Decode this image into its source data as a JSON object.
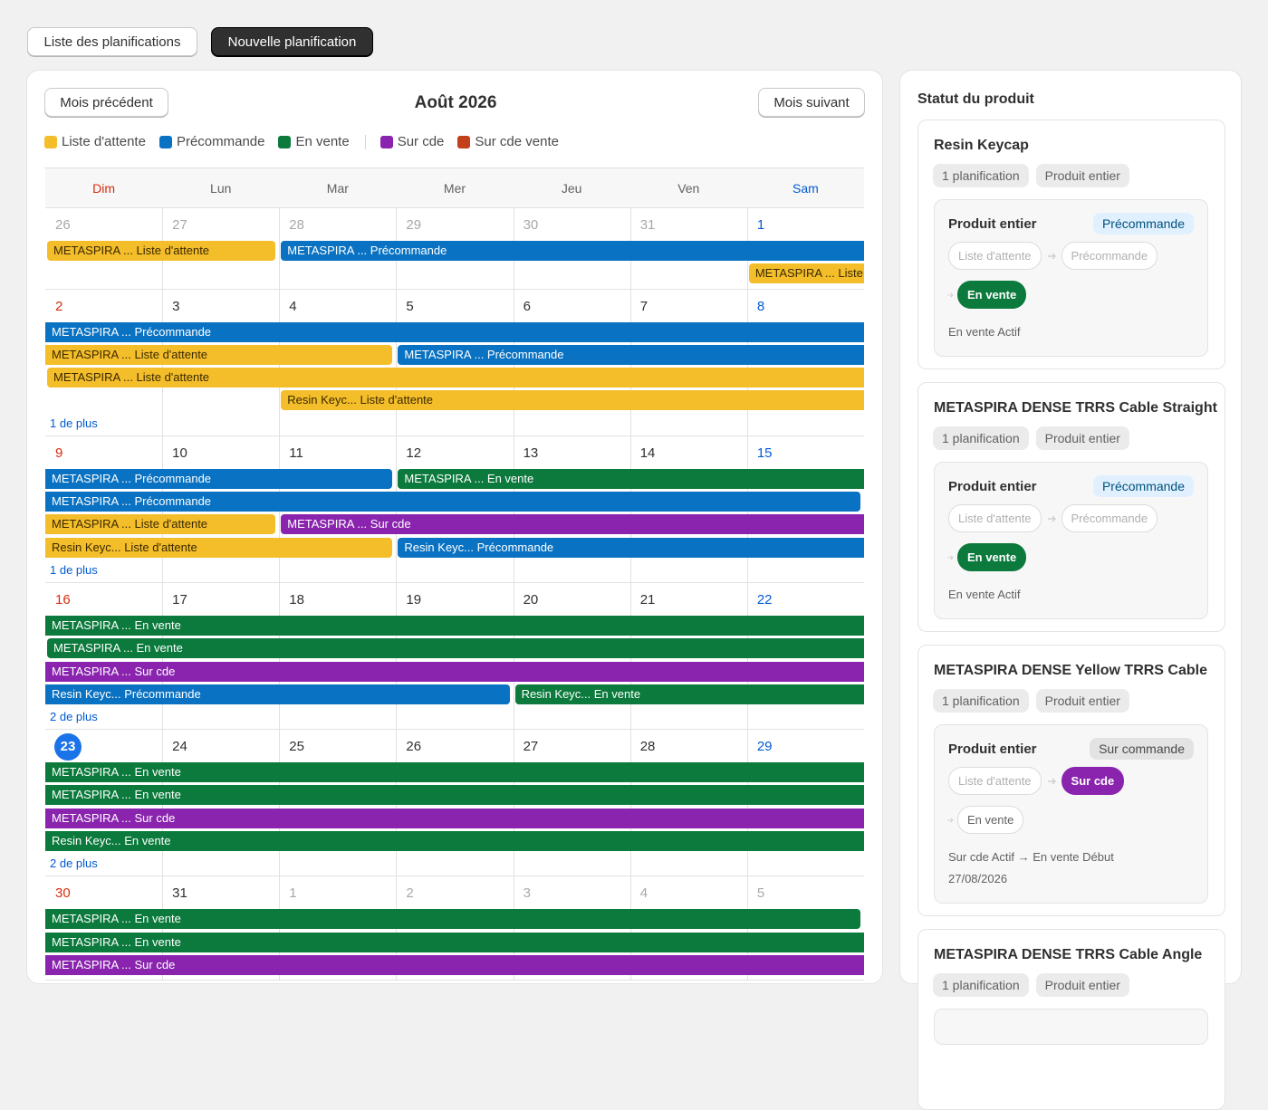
{
  "tabs": [
    "Liste des planifications",
    "Nouvelle planification"
  ],
  "calendar": {
    "prev": "Mois précédent",
    "title": "Août 2026",
    "next": "Mois suivant",
    "legend": [
      {
        "label": "Liste d'attente",
        "color": "#f4bd2a",
        "text_color": "#3a2a00"
      },
      {
        "label": "Précommande",
        "color": "#0a72c2",
        "text_color": "#ffffff"
      },
      {
        "label": "En vente",
        "color": "#0b7a3c",
        "text_color": "#ffffff"
      },
      {
        "label": "Sur cde",
        "color": "#8a24ae",
        "text_color": "#ffffff"
      },
      {
        "label": "Sur cde vente",
        "color": "#c3401a",
        "text_color": "#ffffff"
      }
    ],
    "weekdays": [
      "Dim",
      "Lun",
      "Mar",
      "Mer",
      "Jeu",
      "Ven",
      "Sam"
    ],
    "weeks": [
      {
        "days": [
          {
            "label": "26",
            "other": true
          },
          {
            "label": "27",
            "other": true
          },
          {
            "label": "28",
            "other": true
          },
          {
            "label": "29",
            "other": true
          },
          {
            "label": "30",
            "other": true
          },
          {
            "label": "31",
            "other": true
          },
          {
            "label": "1"
          }
        ],
        "events": [
          {
            "text": "METASPIRA ... Liste d'attente",
            "status": 0,
            "lane": 0,
            "from": 0,
            "to": 1,
            "starts": true,
            "ends": true
          },
          {
            "text": "METASPIRA ... Précommande",
            "status": 1,
            "lane": 0,
            "from": 2,
            "to": 6,
            "starts": true,
            "ends": false
          },
          {
            "text": "METASPIRA ... Liste d'attente",
            "status": 0,
            "lane": 1,
            "from": 6,
            "to": 6,
            "starts": true,
            "ends": false
          }
        ]
      },
      {
        "days": [
          {
            "label": "2"
          },
          {
            "label": "3"
          },
          {
            "label": "4"
          },
          {
            "label": "5"
          },
          {
            "label": "6"
          },
          {
            "label": "7"
          },
          {
            "label": "8"
          }
        ],
        "events": [
          {
            "text": "METASPIRA ... Précommande",
            "status": 1,
            "lane": 0,
            "from": 0,
            "to": 6,
            "starts": false,
            "ends": false
          },
          {
            "text": "METASPIRA ... Liste d'attente",
            "status": 0,
            "lane": 1,
            "from": 0,
            "to": 2,
            "starts": false,
            "ends": true
          },
          {
            "text": "METASPIRA ... Précommande",
            "status": 1,
            "lane": 1,
            "from": 3,
            "to": 6,
            "starts": true,
            "ends": false
          },
          {
            "text": "METASPIRA ... Liste d'attente",
            "status": 0,
            "lane": 2,
            "from": 0,
            "to": 6,
            "starts": true,
            "ends": false
          },
          {
            "text": "Resin Keyc... Liste d'attente",
            "status": 0,
            "lane": 3,
            "from": 2,
            "to": 6,
            "starts": true,
            "ends": false
          }
        ],
        "more": "1 de plus"
      },
      {
        "days": [
          {
            "label": "9"
          },
          {
            "label": "10"
          },
          {
            "label": "11"
          },
          {
            "label": "12"
          },
          {
            "label": "13"
          },
          {
            "label": "14"
          },
          {
            "label": "15"
          }
        ],
        "events": [
          {
            "text": "METASPIRA ... Précommande",
            "status": 1,
            "lane": 0,
            "from": 0,
            "to": 2,
            "starts": false,
            "ends": true
          },
          {
            "text": "METASPIRA ... En vente",
            "status": 2,
            "lane": 0,
            "from": 3,
            "to": 6,
            "starts": true,
            "ends": false
          },
          {
            "text": "METASPIRA ... Précommande",
            "status": 1,
            "lane": 1,
            "from": 0,
            "to": 6,
            "starts": false,
            "ends": true
          },
          {
            "text": "METASPIRA ... Liste d'attente",
            "status": 0,
            "lane": 2,
            "from": 0,
            "to": 1,
            "starts": false,
            "ends": true
          },
          {
            "text": "METASPIRA ... Sur cde",
            "status": 3,
            "lane": 2,
            "from": 2,
            "to": 6,
            "starts": true,
            "ends": false
          },
          {
            "text": "Resin Keyc... Liste d'attente",
            "status": 0,
            "lane": 3,
            "from": 0,
            "to": 2,
            "starts": false,
            "ends": true
          },
          {
            "text": "Resin Keyc... Précommande",
            "status": 1,
            "lane": 3,
            "from": 3,
            "to": 6,
            "starts": true,
            "ends": false
          }
        ],
        "more": "1 de plus"
      },
      {
        "days": [
          {
            "label": "16"
          },
          {
            "label": "17"
          },
          {
            "label": "18"
          },
          {
            "label": "19"
          },
          {
            "label": "20"
          },
          {
            "label": "21"
          },
          {
            "label": "22"
          }
        ],
        "events": [
          {
            "text": "METASPIRA ... En vente",
            "status": 2,
            "lane": 0,
            "from": 0,
            "to": 6,
            "starts": false,
            "ends": false
          },
          {
            "text": "METASPIRA ... En vente",
            "status": 2,
            "lane": 1,
            "from": 0,
            "to": 6,
            "starts": true,
            "ends": false
          },
          {
            "text": "METASPIRA ... Sur cde",
            "status": 3,
            "lane": 2,
            "from": 0,
            "to": 6,
            "starts": false,
            "ends": false
          },
          {
            "text": "Resin Keyc... Précommande",
            "status": 1,
            "lane": 3,
            "from": 0,
            "to": 3,
            "starts": false,
            "ends": true
          },
          {
            "text": "Resin Keyc... En vente",
            "status": 2,
            "lane": 3,
            "from": 4,
            "to": 6,
            "starts": true,
            "ends": false
          }
        ],
        "more": "2 de plus"
      },
      {
        "days": [
          {
            "label": "23",
            "today": true
          },
          {
            "label": "24"
          },
          {
            "label": "25"
          },
          {
            "label": "26"
          },
          {
            "label": "27"
          },
          {
            "label": "28"
          },
          {
            "label": "29"
          }
        ],
        "events": [
          {
            "text": "METASPIRA ... En vente",
            "status": 2,
            "lane": 0,
            "from": 0,
            "to": 6,
            "starts": false,
            "ends": false
          },
          {
            "text": "METASPIRA ... En vente",
            "status": 2,
            "lane": 1,
            "from": 0,
            "to": 6,
            "starts": false,
            "ends": false
          },
          {
            "text": "METASPIRA ... Sur cde",
            "status": 3,
            "lane": 2,
            "from": 0,
            "to": 6,
            "starts": false,
            "ends": false
          },
          {
            "text": "Resin Keyc... En vente",
            "status": 2,
            "lane": 3,
            "from": 0,
            "to": 6,
            "starts": false,
            "ends": false
          }
        ],
        "more": "2 de plus"
      },
      {
        "days": [
          {
            "label": "30"
          },
          {
            "label": "31"
          },
          {
            "label": "1",
            "other": true
          },
          {
            "label": "2",
            "other": true
          },
          {
            "label": "3",
            "other": true
          },
          {
            "label": "4",
            "other": true
          },
          {
            "label": "5",
            "other": true
          }
        ],
        "events": [
          {
            "text": "METASPIRA ... En vente",
            "status": 2,
            "lane": 0,
            "from": 0,
            "to": 6,
            "starts": false,
            "ends": true
          },
          {
            "text": "METASPIRA ... En vente",
            "status": 2,
            "lane": 1,
            "from": 0,
            "to": 6,
            "starts": false,
            "ends": false
          },
          {
            "text": "METASPIRA ... Sur cde",
            "status": 3,
            "lane": 2,
            "from": 0,
            "to": 6,
            "starts": false,
            "ends": false
          }
        ]
      }
    ]
  },
  "status_panel": {
    "title": "Statut du produit",
    "products": [
      {
        "name": "Resin Keycap",
        "tags": [
          "1 planification",
          "Produit entier"
        ],
        "scope": "Produit entier",
        "badge": "Précommande",
        "badge_style": "info",
        "steps": [
          {
            "label": "Liste d'attente",
            "state": "past"
          },
          {
            "label": "Précommande",
            "state": "past"
          },
          {
            "label": "En vente",
            "state": "active",
            "color": "#0b7a3c"
          }
        ],
        "note": "En vente Actif"
      },
      {
        "name": "METASPIRA DENSE TRRS Cable Straight",
        "tags": [
          "1 planification",
          "Produit entier"
        ],
        "scope": "Produit entier",
        "badge": "Précommande",
        "badge_style": "info",
        "steps": [
          {
            "label": "Liste d'attente",
            "state": "past"
          },
          {
            "label": "Précommande",
            "state": "past"
          },
          {
            "label": "En vente",
            "state": "active",
            "color": "#0b7a3c"
          }
        ],
        "note": "En vente Actif"
      },
      {
        "name": "METASPIRA DENSE Yellow TRRS Cable",
        "tags": [
          "1 planification",
          "Produit entier"
        ],
        "scope": "Produit entier",
        "badge": "Sur commande",
        "badge_style": "neutral",
        "steps": [
          {
            "label": "Liste d'attente",
            "state": "past"
          },
          {
            "label": "Sur cde",
            "state": "active",
            "color": "#8a24ae"
          },
          {
            "label": "En vente",
            "state": "future"
          }
        ],
        "note": "Sur cde Actif → En vente Début 27/08/2026"
      },
      {
        "name": "METASPIRA DENSE TRRS Cable Angle",
        "tags": [
          "1 planification",
          "Produit entier"
        ]
      }
    ]
  }
}
